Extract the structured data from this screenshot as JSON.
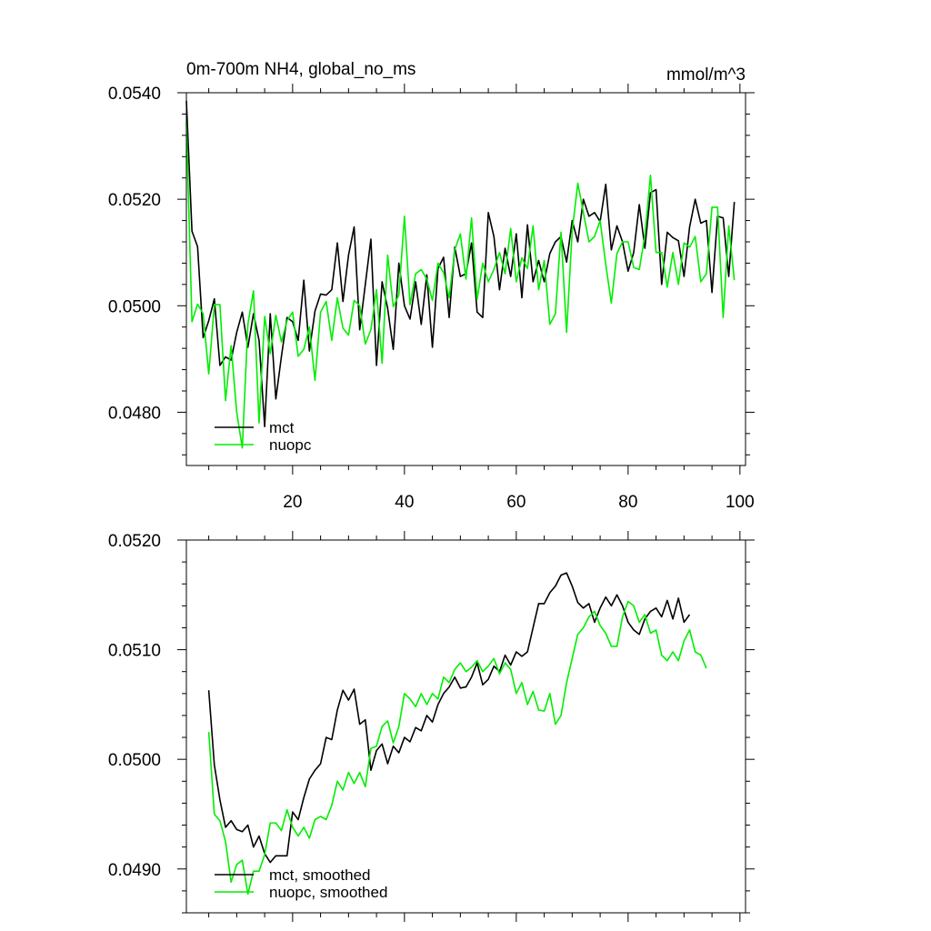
{
  "chart_data": [
    {
      "type": "line",
      "title": "0m-700m NH4, global_no_ms",
      "units": "mmol/m^3",
      "xlim": [
        1,
        101
      ],
      "ylim": [
        0.047,
        0.054
      ],
      "x_ticks": [
        20,
        40,
        60,
        80,
        100
      ],
      "x_tick_labels": [
        "20",
        "40",
        "60",
        "80",
        "100"
      ],
      "y_ticks": [
        0.048,
        0.05,
        0.052,
        0.054
      ],
      "y_tick_labels": [
        "0.0480",
        "0.0500",
        "0.0520",
        "0.0540"
      ],
      "legend_position": "bottom-left",
      "series": [
        {
          "name": "mct",
          "color": "#000000",
          "x_start": 1,
          "values": [
            0.05385,
            0.0514,
            0.05111,
            0.0494,
            0.04972,
            0.05013,
            0.04888,
            0.04904,
            0.04898,
            0.0495,
            0.04988,
            0.04922,
            0.04985,
            0.04935,
            0.04773,
            0.04985,
            0.04825,
            0.04905,
            0.04978,
            0.0497,
            0.04935,
            0.05048,
            0.04915,
            0.0499,
            0.05022,
            0.0502,
            0.0503,
            0.05118,
            0.05008,
            0.05095,
            0.05148,
            0.04955,
            0.0504,
            0.05125,
            0.04888,
            0.05045,
            0.04995,
            0.04918,
            0.0508,
            0.05,
            0.04975,
            0.05045,
            0.04965,
            0.05058,
            0.04922,
            0.0507,
            0.05091,
            0.04978,
            0.0511,
            0.05055,
            0.0506,
            0.05118,
            0.04988,
            0.04978,
            0.05175,
            0.0513,
            0.0503,
            0.05108,
            0.05055,
            0.05135,
            0.05015,
            0.05152,
            0.05045,
            0.05085,
            0.05045,
            0.05098,
            0.0512,
            0.0513,
            0.05082,
            0.0516,
            0.0512,
            0.052,
            0.05168,
            0.05175,
            0.05158,
            0.05228,
            0.05105,
            0.0515,
            0.0512,
            0.05065,
            0.051,
            0.0519,
            0.05108,
            0.05212,
            0.05218,
            0.0504,
            0.05138,
            0.05128,
            0.05122,
            0.05055,
            0.05148,
            0.052,
            0.05155,
            0.0516,
            0.05025,
            0.05168,
            0.05165,
            0.05055,
            0.05195
          ]
        },
        {
          "name": "nuopc",
          "color": "#00ee00",
          "x_start": 1,
          "values": [
            0.05345,
            0.0497,
            0.05003,
            0.04985,
            0.04872,
            0.05002,
            0.05002,
            0.04822,
            0.04925,
            0.048,
            0.04733,
            0.04965,
            0.05028,
            0.0478,
            0.0498,
            0.0491,
            0.04982,
            0.04932,
            0.04972,
            0.04988,
            0.04905,
            0.04918,
            0.0496,
            0.0486,
            0.04988,
            0.05008,
            0.04935,
            0.05015,
            0.04958,
            0.04945,
            0.0501,
            0.05,
            0.04928,
            0.04955,
            0.0503,
            0.04892,
            0.05095,
            0.04998,
            0.0502,
            0.05168,
            0.05002,
            0.0506,
            0.05068,
            0.0505,
            0.0501,
            0.0508,
            0.05062,
            0.05015,
            0.05105,
            0.05135,
            0.0505,
            0.05165,
            0.05012,
            0.0508,
            0.05045,
            0.05068,
            0.051,
            0.0506,
            0.05145,
            0.05045,
            0.0509,
            0.0507,
            0.0515,
            0.0503,
            0.05085,
            0.04965,
            0.04985,
            0.05138,
            0.0495,
            0.0514,
            0.0523,
            0.05175,
            0.0512,
            0.0513,
            0.0516,
            0.05078,
            0.05005,
            0.05098,
            0.0512,
            0.0512,
            0.05072,
            0.05068,
            0.05132,
            0.05245,
            0.051,
            0.051,
            0.05035,
            0.051,
            0.0504,
            0.05118,
            0.0511,
            0.0513,
            0.05045,
            0.0506,
            0.05185,
            0.05185,
            0.04978,
            0.0515,
            0.05048
          ]
        }
      ],
      "legend": [
        "mct",
        "nuopc"
      ]
    },
    {
      "type": "line",
      "title": "",
      "xlim": [
        1,
        101
      ],
      "ylim": [
        0.0486,
        0.052
      ],
      "y_ticks": [
        0.049,
        0.05,
        0.051,
        0.052
      ],
      "y_tick_labels": [
        "0.0490",
        "0.0500",
        "0.0510",
        "0.0520"
      ],
      "legend_position": "bottom-left",
      "series": [
        {
          "name": "mct, smoothed",
          "color": "#000000",
          "x_start": 5,
          "values": [
            0.05063,
            0.04995,
            0.04963,
            0.04938,
            0.04944,
            0.04936,
            0.04934,
            0.0494,
            0.0492,
            0.0493,
            0.04914,
            0.04906,
            0.04912,
            0.04912,
            0.04912,
            0.04952,
            0.04945,
            0.04965,
            0.04982,
            0.0499,
            0.04996,
            0.0502,
            0.05018,
            0.05045,
            0.05063,
            0.05054,
            0.05064,
            0.05032,
            0.05036,
            0.0499,
            0.05008,
            0.05014,
            0.04996,
            0.05012,
            0.05006,
            0.0502,
            0.05016,
            0.05029,
            0.05026,
            0.0504,
            0.05034,
            0.0505,
            0.0506,
            0.05066,
            0.05075,
            0.05065,
            0.05066,
            0.05075,
            0.05088,
            0.05068,
            0.05073,
            0.05085,
            0.0508,
            0.05095,
            0.05086,
            0.05098,
            0.05094,
            0.05098,
            0.0512,
            0.05142,
            0.05142,
            0.05152,
            0.05158,
            0.05168,
            0.0517,
            0.05158,
            0.05143,
            0.05138,
            0.05142,
            0.05125,
            0.05138,
            0.05148,
            0.0514,
            0.0515,
            0.0514,
            0.05125,
            0.05118,
            0.05114,
            0.05128,
            0.05135,
            0.05138,
            0.0513,
            0.05145,
            0.05128,
            0.05147,
            0.05125,
            0.05132
          ]
        },
        {
          "name": "nuopc, smoothed",
          "color": "#00ee00",
          "x_start": 5,
          "values": [
            0.05025,
            0.0495,
            0.04944,
            0.04925,
            0.04888,
            0.04904,
            0.04908,
            0.04877,
            0.04898,
            0.04898,
            0.04913,
            0.04942,
            0.04942,
            0.04935,
            0.04954,
            0.04938,
            0.0493,
            0.04938,
            0.04928,
            0.04945,
            0.04948,
            0.04945,
            0.04958,
            0.0498,
            0.04972,
            0.04988,
            0.04978,
            0.04988,
            0.04975,
            0.0501,
            0.05012,
            0.0503,
            0.05035,
            0.05015,
            0.0503,
            0.0506,
            0.05055,
            0.05048,
            0.0506,
            0.0505,
            0.0506,
            0.05055,
            0.05075,
            0.0507,
            0.05082,
            0.05088,
            0.0508,
            0.05084,
            0.0509,
            0.0508,
            0.05085,
            0.05092,
            0.05078,
            0.05088,
            0.05082,
            0.0506,
            0.0507,
            0.0505,
            0.05062,
            0.05045,
            0.05044,
            0.0506,
            0.05032,
            0.0504,
            0.0507,
            0.05092,
            0.05114,
            0.0512,
            0.0513,
            0.05135,
            0.05122,
            0.05115,
            0.05103,
            0.05103,
            0.0513,
            0.05144,
            0.0514,
            0.05125,
            0.05132,
            0.05115,
            0.05118,
            0.05095,
            0.0509,
            0.05098,
            0.0509,
            0.05108,
            0.05118,
            0.05098,
            0.05095,
            0.05083
          ]
        }
      ],
      "legend": [
        "mct, smoothed",
        "nuopc, smoothed"
      ]
    }
  ]
}
